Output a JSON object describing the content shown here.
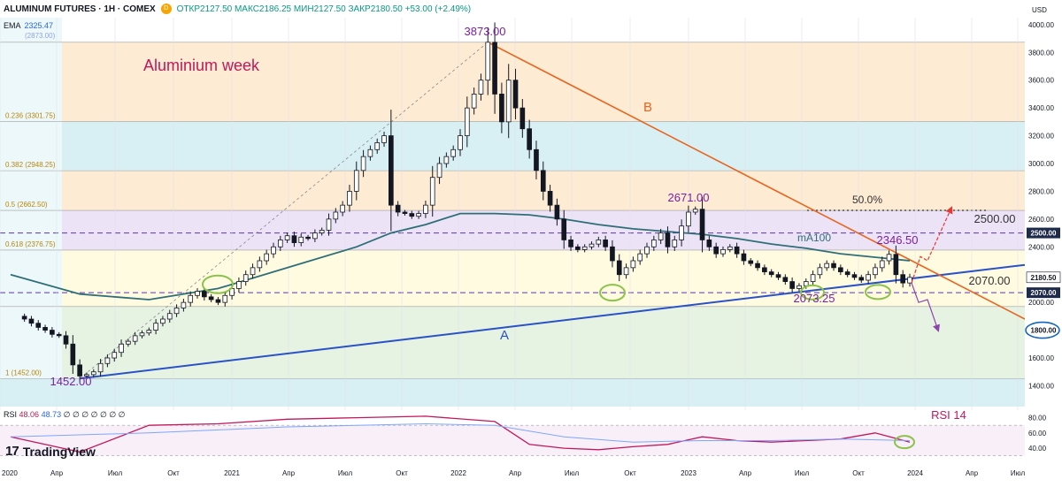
{
  "header": {
    "symbol": "ALUMINUM FUTURES · 1H · COMEX",
    "ohlc": "ОТКР2127.50  МАКС2186.25  МИН2127.50  ЗАКР2180.50  +53.00 (+2.49%)",
    "currency": "USD",
    "badge_d": "D"
  },
  "ema": {
    "label": "EMA",
    "value": "2325.47",
    "sub_value": "(2873.00)"
  },
  "rsi": {
    "label": "RSI",
    "value1": "48.06",
    "value2": "48.73",
    "placeholders": "∅ ∅ ∅ ∅ ∅ ∅ ∅",
    "annotation": "RSI 14"
  },
  "brand": {
    "name": "TradingView",
    "mark": "17"
  },
  "annotations": {
    "title": "Aluminium week",
    "peak": "3873.00",
    "low": "1452.00",
    "b_label": "B",
    "a_label": "A",
    "level_2671": "2671.00",
    "level_2500": "2500.00",
    "fifty": "50.0%",
    "ma100": "mA100",
    "level_2346": "2346.50",
    "level_2070": "2070.00",
    "level_2073": "2073.25"
  },
  "fib_labels": [
    {
      "ratio": "0.236",
      "value": "(3301.75)",
      "label": "0.236 (3301.75)"
    },
    {
      "ratio": "0.382",
      "value": "(2948.25)",
      "label": "0.382 (2948.25)"
    },
    {
      "ratio": "0.5",
      "value": "(2662.50)",
      "label": "0.5 (2662.50)"
    },
    {
      "ratio": "0.618",
      "value": "(2376.75)",
      "label": "0.618 (2376.75)"
    },
    {
      "ratio": "1",
      "value": "(1452.00)",
      "label": "1 (1452.00)"
    }
  ],
  "price_badges": [
    "2500.00",
    "2180.50",
    "2070.00",
    "1800.00"
  ],
  "colors": {
    "up": "#ffffff",
    "down": "#131722",
    "ma": "#2e6f77",
    "trend_a": "#2952c8",
    "trend_b": "#e8651f",
    "rsi": "#c2185b",
    "rsi_ma": "#7ea6ff",
    "green_ellipse": "#8bc34a"
  },
  "chart_data": {
    "type": "candlestick",
    "y_axis": {
      "ticks": [
        1400,
        1600,
        1800,
        2000,
        2200,
        2400,
        2600,
        2800,
        3000,
        3200,
        3400,
        3600,
        3800,
        4000
      ],
      "ylim": [
        1250,
        4050
      ]
    },
    "x_axis": {
      "labels": [
        "2020",
        "Апр",
        "Июл",
        "Окт",
        "2021",
        "Апр",
        "Июл",
        "Окт",
        "2022",
        "Апр",
        "Июл",
        "Окт",
        "2023",
        "Апр",
        "Июл",
        "Окт",
        "2024",
        "Апр",
        "Июл"
      ]
    },
    "fib_levels": [
      {
        "ratio": 0,
        "price": 3873.0
      },
      {
        "ratio": 0.236,
        "price": 3301.75
      },
      {
        "ratio": 0.382,
        "price": 2948.25
      },
      {
        "ratio": 0.5,
        "price": 2662.5
      },
      {
        "ratio": 0.618,
        "price": 2376.75
      },
      {
        "ratio": 0.786,
        "price": 1970
      },
      {
        "ratio": 1,
        "price": 1452.0
      }
    ],
    "horizontal_levels": [
      2500.0,
      2070.0
    ],
    "rsi_axis": {
      "ticks": [
        40,
        60,
        80
      ],
      "ylim": [
        25,
        90
      ],
      "bands": [
        70,
        30
      ]
    },
    "price_path": [
      [
        1,
        1900
      ],
      [
        2,
        1880
      ],
      [
        3,
        1850
      ],
      [
        4,
        1820
      ],
      [
        5,
        1800
      ],
      [
        6,
        1770
      ],
      [
        7,
        1760
      ],
      [
        8,
        1700
      ],
      [
        9,
        1550
      ],
      [
        10,
        1470
      ],
      [
        11,
        1480
      ],
      [
        12,
        1500
      ],
      [
        13,
        1560
      ],
      [
        14,
        1600
      ],
      [
        15,
        1640
      ],
      [
        16,
        1700
      ],
      [
        17,
        1720
      ],
      [
        18,
        1760
      ],
      [
        19,
        1780
      ],
      [
        20,
        1800
      ],
      [
        21,
        1850
      ],
      [
        22,
        1880
      ],
      [
        23,
        1920
      ],
      [
        24,
        1960
      ],
      [
        25,
        2000
      ],
      [
        26,
        2050
      ],
      [
        27,
        2080
      ],
      [
        28,
        2040
      ],
      [
        29,
        2020
      ],
      [
        30,
        2000
      ],
      [
        31,
        2050
      ],
      [
        32,
        2100
      ],
      [
        33,
        2150
      ],
      [
        34,
        2200
      ],
      [
        35,
        2250
      ],
      [
        36,
        2300
      ],
      [
        37,
        2350
      ],
      [
        38,
        2400
      ],
      [
        39,
        2450
      ],
      [
        40,
        2480
      ],
      [
        41,
        2430
      ],
      [
        42,
        2470
      ],
      [
        43,
        2460
      ],
      [
        44,
        2500
      ],
      [
        45,
        2520
      ],
      [
        46,
        2600
      ],
      [
        47,
        2650
      ],
      [
        48,
        2700
      ],
      [
        49,
        2800
      ],
      [
        50,
        2950
      ],
      [
        51,
        3050
      ],
      [
        52,
        3100
      ],
      [
        53,
        3150
      ],
      [
        54,
        3200
      ],
      [
        55,
        2700
      ],
      [
        56,
        2650
      ],
      [
        57,
        2640
      ],
      [
        58,
        2620
      ],
      [
        59,
        2640
      ],
      [
        60,
        2700
      ],
      [
        61,
        2900
      ],
      [
        62,
        3000
      ],
      [
        63,
        3050
      ],
      [
        64,
        3100
      ],
      [
        65,
        3200
      ],
      [
        66,
        3400
      ],
      [
        67,
        3500
      ],
      [
        68,
        3600
      ],
      [
        69,
        3873
      ],
      [
        70,
        3500
      ],
      [
        71,
        3300
      ],
      [
        72,
        3600
      ],
      [
        73,
        3400
      ],
      [
        74,
        3250
      ],
      [
        75,
        3100
      ],
      [
        76,
        2950
      ],
      [
        77,
        2800
      ],
      [
        78,
        2700
      ],
      [
        79,
        2600
      ],
      [
        80,
        2450
      ],
      [
        81,
        2400
      ],
      [
        82,
        2380
      ],
      [
        83,
        2400
      ],
      [
        84,
        2420
      ],
      [
        85,
        2450
      ],
      [
        86,
        2400
      ],
      [
        87,
        2300
      ],
      [
        88,
        2200
      ],
      [
        89,
        2250
      ],
      [
        90,
        2300
      ],
      [
        91,
        2350
      ],
      [
        92,
        2400
      ],
      [
        93,
        2450
      ],
      [
        94,
        2500
      ],
      [
        95,
        2400
      ],
      [
        96,
        2450
      ],
      [
        97,
        2550
      ],
      [
        98,
        2650
      ],
      [
        99,
        2671
      ],
      [
        100,
        2450
      ],
      [
        101,
        2400
      ],
      [
        102,
        2350
      ],
      [
        103,
        2380
      ],
      [
        104,
        2400
      ],
      [
        105,
        2350
      ],
      [
        106,
        2300
      ],
      [
        107,
        2280
      ],
      [
        108,
        2250
      ],
      [
        109,
        2220
      ],
      [
        110,
        2200
      ],
      [
        111,
        2180
      ],
      [
        112,
        2150
      ],
      [
        113,
        2100
      ],
      [
        114,
        2120
      ],
      [
        115,
        2150
      ],
      [
        116,
        2200
      ],
      [
        117,
        2250
      ],
      [
        118,
        2280
      ],
      [
        119,
        2250
      ],
      [
        120,
        2220
      ],
      [
        121,
        2200
      ],
      [
        122,
        2180
      ],
      [
        123,
        2160
      ],
      [
        124,
        2200
      ],
      [
        125,
        2250
      ],
      [
        126,
        2300
      ],
      [
        127,
        2346
      ],
      [
        128,
        2200
      ],
      [
        129,
        2140
      ],
      [
        130,
        2180
      ]
    ],
    "ma100_path": [
      [
        0,
        2200
      ],
      [
        10,
        2060
      ],
      [
        20,
        2020
      ],
      [
        30,
        2100
      ],
      [
        40,
        2250
      ],
      [
        50,
        2400
      ],
      [
        55,
        2500
      ],
      [
        60,
        2560
      ],
      [
        65,
        2640
      ],
      [
        70,
        2640
      ],
      [
        75,
        2630
      ],
      [
        80,
        2600
      ],
      [
        85,
        2560
      ],
      [
        90,
        2530
      ],
      [
        95,
        2510
      ],
      [
        100,
        2490
      ],
      [
        105,
        2460
      ],
      [
        110,
        2420
      ],
      [
        115,
        2390
      ],
      [
        120,
        2350
      ],
      [
        130,
        2300
      ]
    ],
    "rsi_path": [
      [
        0,
        55
      ],
      [
        10,
        35
      ],
      [
        20,
        70
      ],
      [
        30,
        72
      ],
      [
        40,
        78
      ],
      [
        50,
        80
      ],
      [
        60,
        82
      ],
      [
        70,
        75
      ],
      [
        75,
        45
      ],
      [
        80,
        40
      ],
      [
        85,
        38
      ],
      [
        90,
        42
      ],
      [
        95,
        45
      ],
      [
        100,
        55
      ],
      [
        105,
        50
      ],
      [
        110,
        48
      ],
      [
        115,
        50
      ],
      [
        120,
        52
      ],
      [
        125,
        60
      ],
      [
        130,
        48
      ]
    ],
    "rsi_ma_path": [
      [
        0,
        55
      ],
      [
        20,
        60
      ],
      [
        40,
        68
      ],
      [
        60,
        72
      ],
      [
        70,
        70
      ],
      [
        80,
        55
      ],
      [
        90,
        48
      ],
      [
        100,
        50
      ],
      [
        110,
        50
      ],
      [
        120,
        52
      ],
      [
        130,
        50
      ]
    ]
  }
}
